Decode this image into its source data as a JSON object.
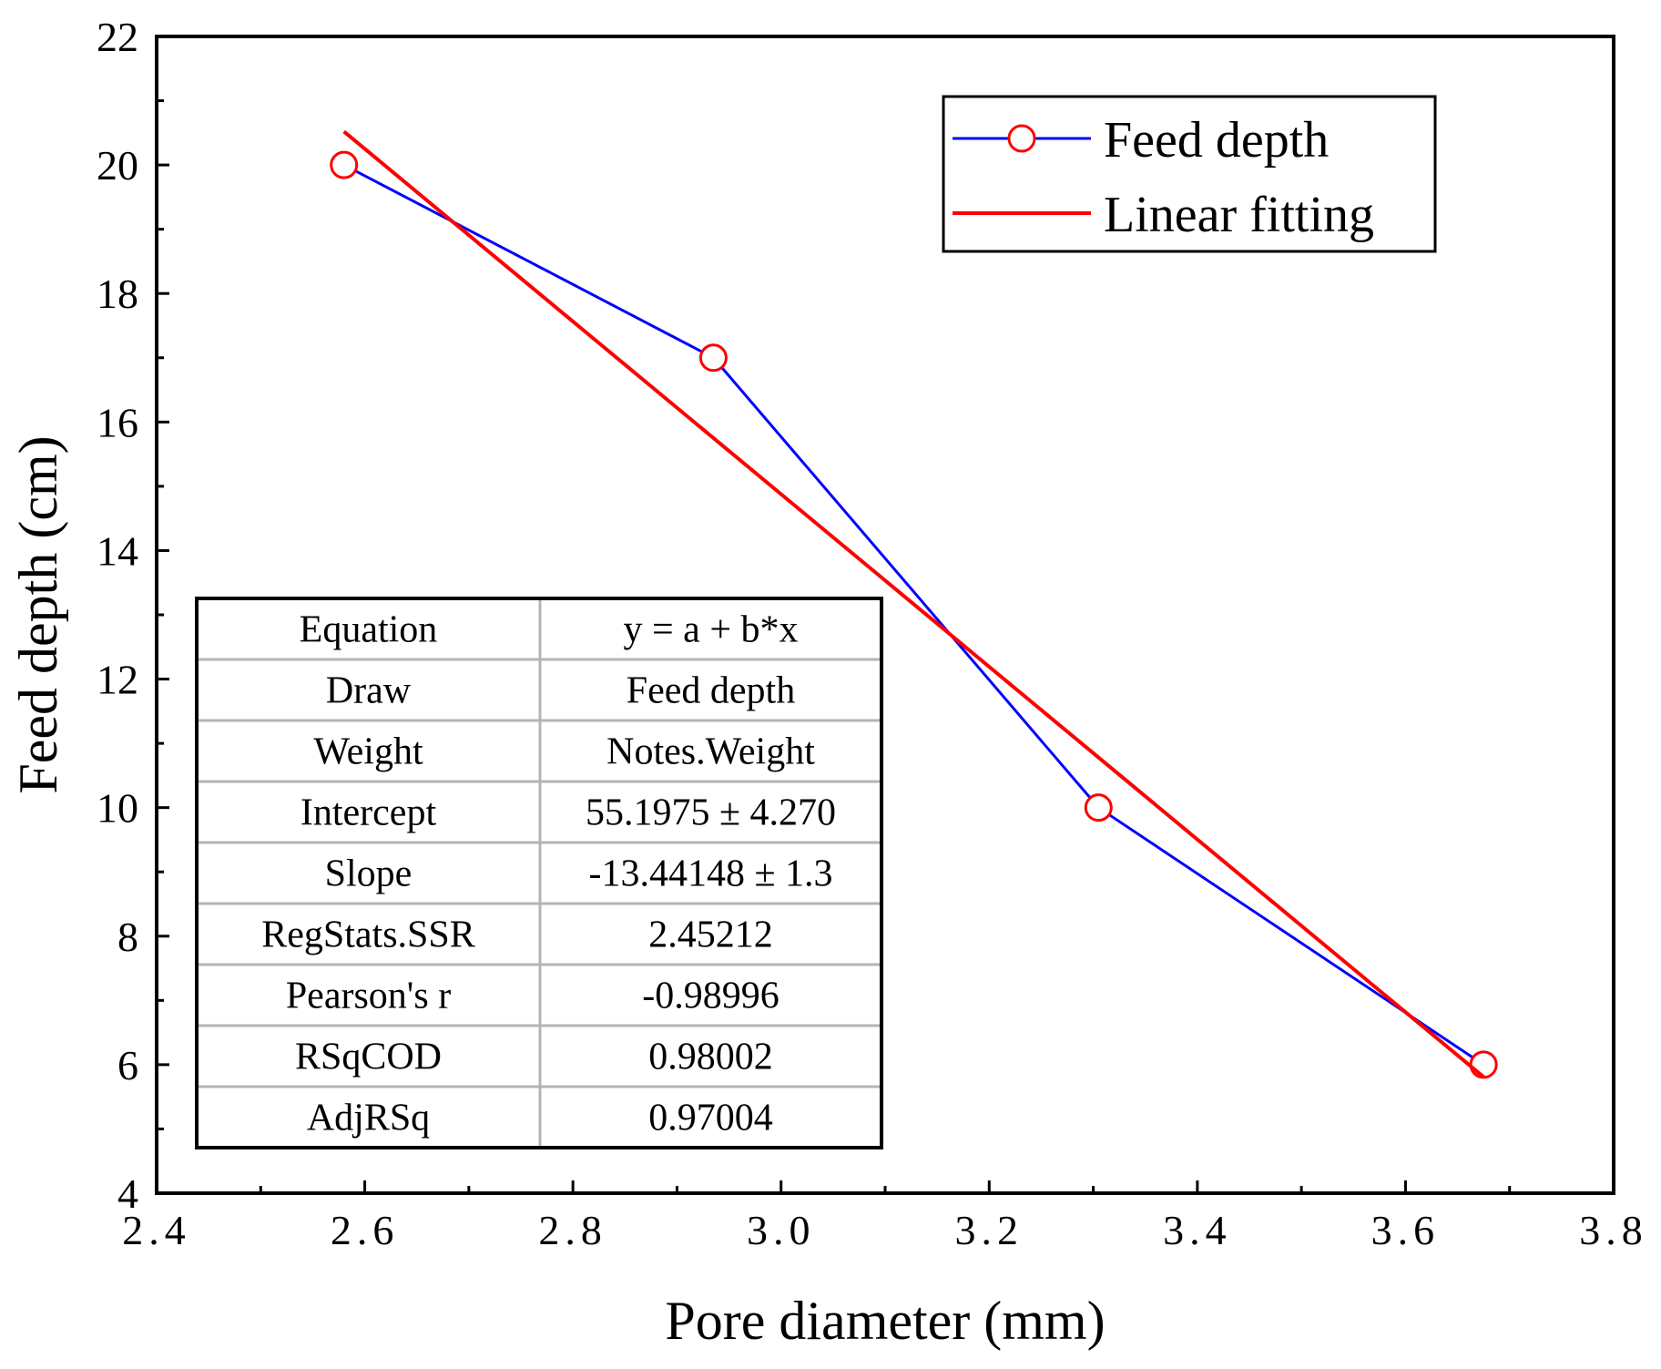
{
  "chart_data": {
    "type": "line",
    "xlabel": "Pore diameter (mm)",
    "ylabel": "Feed depth (cm)",
    "xlim": [
      2.4,
      3.8
    ],
    "ylim": [
      4,
      22
    ],
    "x_ticks": [
      2.4,
      2.6,
      2.8,
      3.0,
      3.2,
      3.4,
      3.6,
      3.8
    ],
    "x_tick_labels": [
      "2.4",
      "2.6",
      "2.8",
      "3.0",
      "3.2",
      "3.4",
      "3.6",
      "3.8"
    ],
    "y_ticks": [
      4,
      6,
      8,
      10,
      12,
      14,
      16,
      18,
      20,
      22
    ],
    "y_tick_labels": [
      "4",
      "6",
      "8",
      "10",
      "12",
      "14",
      "16",
      "18",
      "20",
      "22"
    ],
    "legend_position": "top-right",
    "series": [
      {
        "name": "Feed depth",
        "kind": "line-marker",
        "line_color": "#0000ff",
        "marker_color": "#ff0000",
        "x": [
          2.58,
          2.935,
          3.305,
          3.675
        ],
        "y": [
          20,
          17,
          10,
          6
        ]
      },
      {
        "name": "Linear fitting",
        "kind": "line",
        "line_color": "#ff0000",
        "x": [
          2.58,
          3.675
        ],
        "y": [
          20.52,
          5.81
        ]
      }
    ],
    "fit_table": [
      {
        "label": "Equation",
        "value": "y = a + b*x"
      },
      {
        "label": "Draw",
        "value": "Feed depth"
      },
      {
        "label": "Weight",
        "value": "Notes.Weight"
      },
      {
        "label": "Intercept",
        "value": "55.1975 ± 4.270"
      },
      {
        "label": "Slope",
        "value": "-13.44148 ± 1.3"
      },
      {
        "label": "RegStats.SSR",
        "value": "2.45212"
      },
      {
        "label": "Pearson's r",
        "value": "-0.98996"
      },
      {
        "label": "RSqCOD",
        "value": "0.98002"
      },
      {
        "label": "AdjRSq",
        "value": "0.97004"
      }
    ]
  }
}
